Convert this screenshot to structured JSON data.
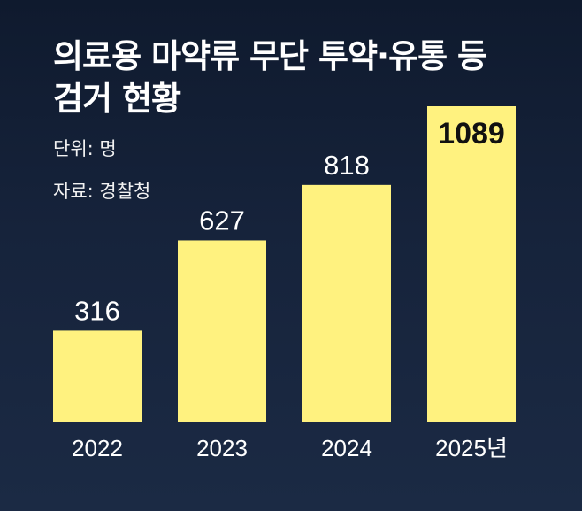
{
  "title_lines": [
    "의료용 마약류 무단 투약·유통 등",
    "검거 현황"
  ],
  "unit": "단위: 명",
  "source": "자료: 경찰청",
  "colors": {
    "bar": "#fff27f",
    "background": "#14203a",
    "text": "#ffffff",
    "highlight_label": "#111111"
  },
  "chart_data": {
    "type": "bar",
    "categories": [
      "2022",
      "2023",
      "2024",
      "2025년"
    ],
    "values": [
      316,
      627,
      818,
      1089
    ],
    "title": "의료용 마약류 무단 투약·유통 등 검거 현황",
    "xlabel": "",
    "ylabel": "",
    "ylim": [
      0,
      1089
    ],
    "grid": false,
    "highlight_index": 3
  }
}
